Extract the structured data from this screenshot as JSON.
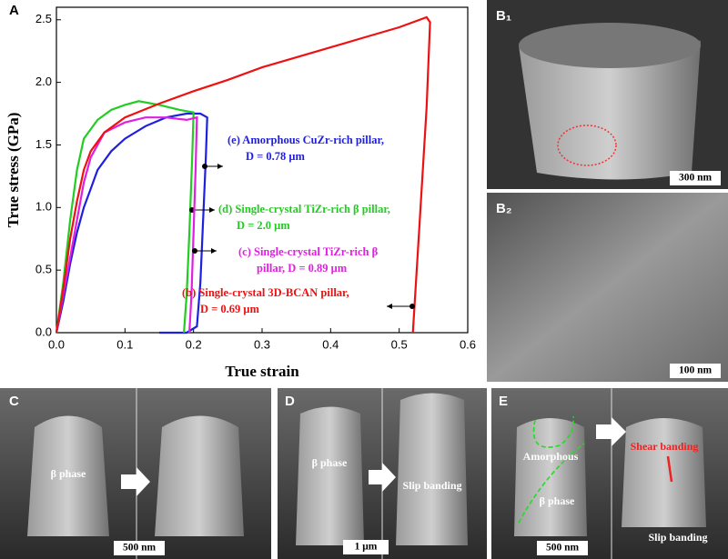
{
  "chart_data": {
    "type": "line",
    "panel": "A",
    "xlabel": "True strain",
    "ylabel": "True stress (GPa)",
    "xlim": [
      0,
      0.6
    ],
    "ylim": [
      0,
      2.6
    ],
    "xticks": [
      {
        "value": 0,
        "label": "0.0"
      },
      0.1,
      0.2,
      0.3,
      0.4,
      0.5,
      0.6
    ],
    "yticks": [
      {
        "value": 0,
        "label": "0.0"
      },
      0.5,
      {
        "value": 1,
        "label": "1.0"
      },
      1.5,
      {
        "value": 2,
        "label": "2.0"
      },
      2.5
    ],
    "series": [
      {
        "name": "(e) Amorphous CuZr-rich pillar,",
        "detail": "D = 0.78 μm",
        "color": "#1f1fe0",
        "x": [
          0,
          0.01,
          0.02,
          0.03,
          0.04,
          0.05,
          0.06,
          0.08,
          0.1,
          0.13,
          0.16,
          0.19,
          0.21,
          0.22,
          0.218,
          0.214,
          0.21,
          0.205,
          0.19,
          0.15
        ],
        "values": [
          0,
          0.25,
          0.55,
          0.8,
          1.0,
          1.15,
          1.3,
          1.45,
          1.55,
          1.65,
          1.72,
          1.75,
          1.75,
          1.72,
          1.4,
          0.9,
          0.4,
          0.05,
          0,
          0
        ]
      },
      {
        "name": "(d) Single-crystal TiZr-rich β pillar,",
        "detail": "D = 2.0 μm",
        "color": "#22cc22",
        "x": [
          0,
          0.01,
          0.02,
          0.03,
          0.04,
          0.06,
          0.08,
          0.1,
          0.12,
          0.15,
          0.18,
          0.2,
          0.198,
          0.194,
          0.19,
          0.186
        ],
        "values": [
          0,
          0.4,
          0.9,
          1.3,
          1.55,
          1.7,
          1.78,
          1.82,
          1.85,
          1.82,
          1.78,
          1.76,
          1.4,
          0.8,
          0.3,
          0
        ]
      },
      {
        "name": "(c) Single-crystal TiZr-rich β",
        "detail": "pillar, D = 0.89 μm",
        "color": "#e020e0",
        "x": [
          0,
          0.01,
          0.02,
          0.03,
          0.04,
          0.05,
          0.07,
          0.1,
          0.13,
          0.16,
          0.19,
          0.205,
          0.203,
          0.2,
          0.197,
          0.194
        ],
        "values": [
          0,
          0.3,
          0.6,
          0.9,
          1.2,
          1.4,
          1.6,
          1.68,
          1.72,
          1.72,
          1.7,
          1.72,
          1.3,
          0.8,
          0.3,
          0
        ]
      },
      {
        "name": "(b) Single-crystal 3D-BCAN pillar,",
        "detail": "D = 0.69 μm",
        "color": "#ee1111",
        "x": [
          0,
          0.01,
          0.02,
          0.03,
          0.04,
          0.05,
          0.07,
          0.1,
          0.15,
          0.2,
          0.25,
          0.3,
          0.35,
          0.4,
          0.45,
          0.5,
          0.54,
          0.545,
          0.54,
          0.53,
          0.52
        ],
        "values": [
          0,
          0.35,
          0.75,
          1.05,
          1.3,
          1.45,
          1.6,
          1.72,
          1.83,
          1.93,
          2.02,
          2.12,
          2.2,
          2.28,
          2.36,
          2.44,
          2.52,
          2.48,
          1.8,
          0.9,
          0
        ]
      }
    ]
  },
  "panels": {
    "B1": {
      "letter": "B₁",
      "scale": "300 nm"
    },
    "B2": {
      "letter": "B₂",
      "scale": "100 nm"
    },
    "C": {
      "letter": "C",
      "phase": "β phase",
      "scale": "500 nm"
    },
    "D": {
      "letter": "D",
      "phase": "β phase",
      "slip": "Slip banding",
      "scale": "1 μm"
    },
    "E": {
      "letter": "E",
      "amorphous": "Amorphous",
      "phase": "β phase",
      "shear": "Shear banding",
      "slip": "Slip banding",
      "scale": "500 nm"
    }
  }
}
